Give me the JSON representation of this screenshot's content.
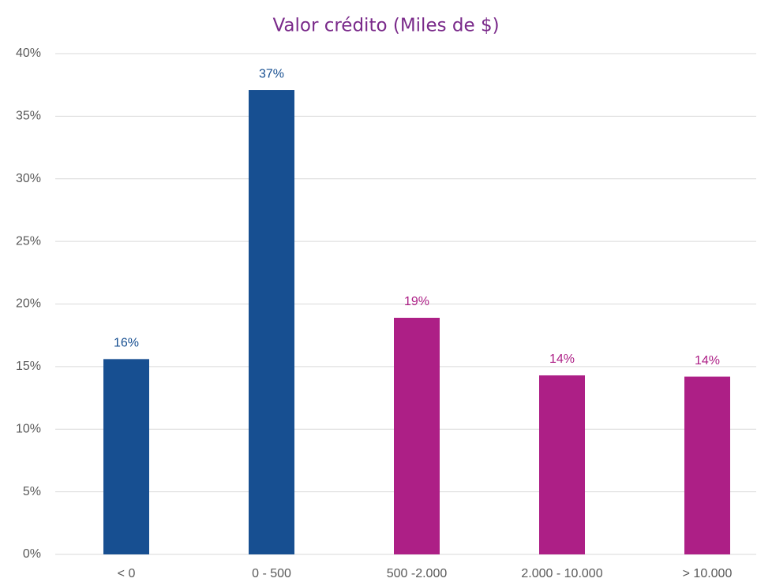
{
  "chart_data": {
    "type": "bar",
    "title": "Valor crédito (Miles de $)",
    "categories": [
      "< 0",
      "0 - 500",
      "500 -2.000",
      "2.000 - 10.000",
      "> 10.000"
    ],
    "values": [
      15.6,
      37.1,
      18.9,
      14.3,
      14.2
    ],
    "value_labels": [
      "16%",
      "37%",
      "19%",
      "14%",
      "14%"
    ],
    "colors": [
      "#174f91",
      "#174f91",
      "#ad1f86",
      "#ad1f86",
      "#ad1f86"
    ],
    "ylim": [
      0,
      40
    ],
    "yticks": [
      {
        "value": 0,
        "label": "0%"
      },
      {
        "value": 5,
        "label": "5%"
      },
      {
        "value": 10,
        "label": "10%"
      },
      {
        "value": 15,
        "label": "15%"
      },
      {
        "value": 20,
        "label": "20%"
      },
      {
        "value": 25,
        "label": "25%"
      },
      {
        "value": 30,
        "label": "30%"
      },
      {
        "value": 35,
        "label": "35%"
      },
      {
        "value": 40,
        "label": "40%"
      }
    ],
    "grid": true
  }
}
